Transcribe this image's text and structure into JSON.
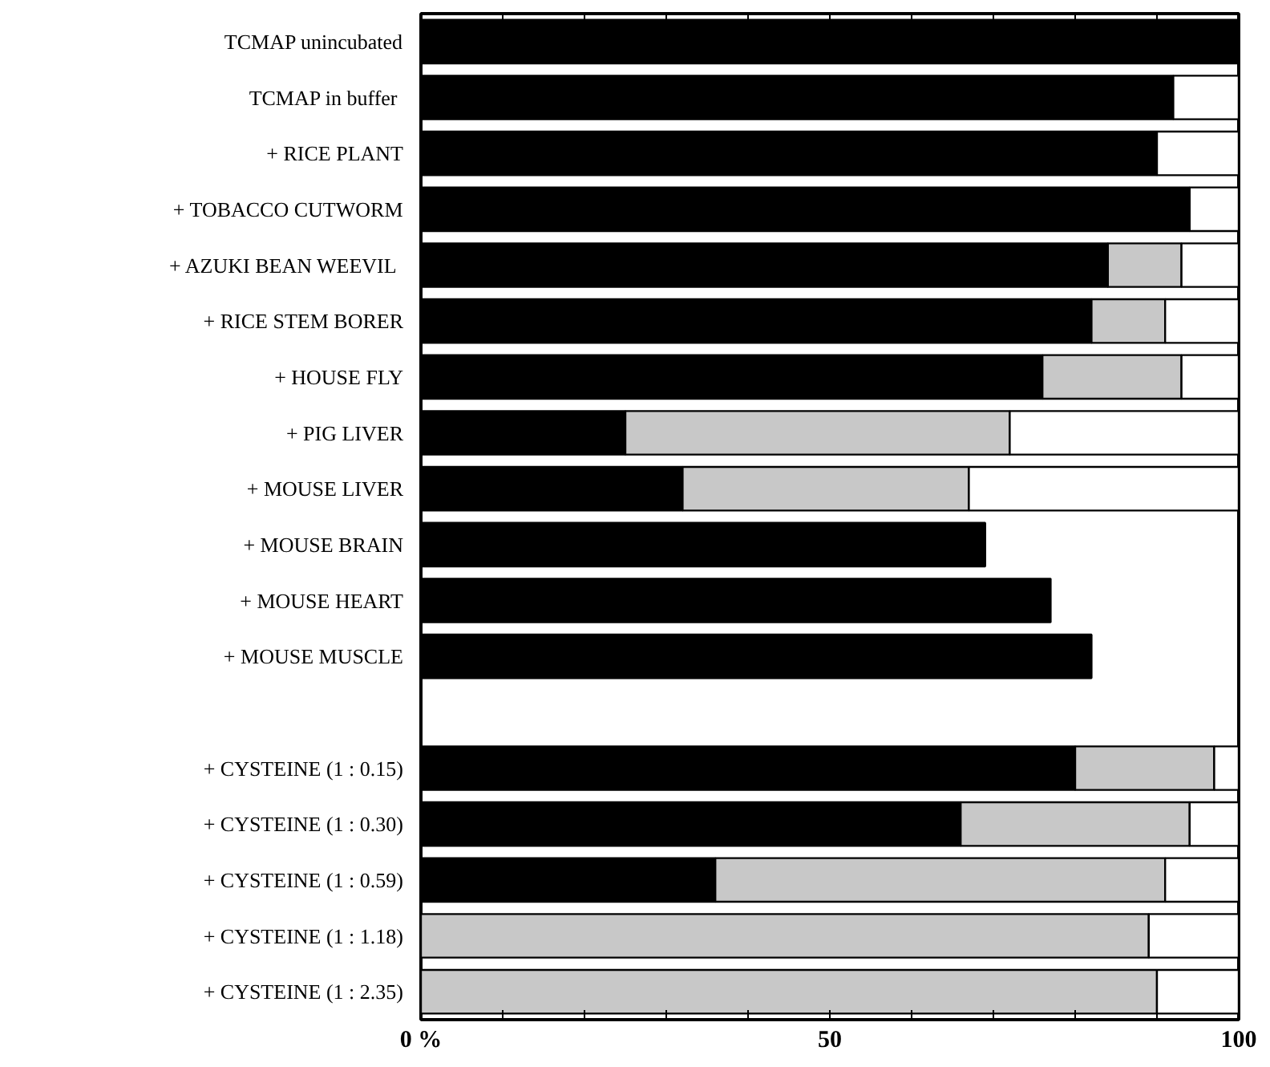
{
  "chart_data": {
    "type": "bar",
    "orientation": "horizontal",
    "stacked": true,
    "categories": [
      "TCMAP unincubated",
      "TCMAP  in buffer",
      "+ RICE PLANT",
      "+ TOBACCO CUTWORM",
      "+ AZUKI BEAN  WEEVIL",
      "+ RICE STEM BORER",
      "+ HOUSE FLY",
      "+ PIG LIVER",
      "+ MOUSE LIVER",
      "+ MOUSE BRAIN",
      "+ MOUSE HEART",
      "+ MOUSE MUSCLE",
      null,
      "+ CYSTEINE (1 : 0.15)",
      "+ CYSTEINE (1 : 0.30)",
      "+ CYSTEINE (1 : 0.59)",
      "+ CYSTEINE (1 : 1.18)",
      "+ CYSTEINE (1 : 2.35)"
    ],
    "series": [
      {
        "color": "#000000",
        "values": [
          100,
          92,
          90,
          94,
          84,
          82,
          76,
          25,
          32,
          69,
          77,
          82,
          null,
          80,
          66,
          36,
          null,
          null
        ]
      },
      {
        "color": "#c8c8c8",
        "values": [
          null,
          null,
          null,
          null,
          9,
          9,
          17,
          47,
          35,
          null,
          null,
          null,
          null,
          17,
          28,
          55,
          89,
          90
        ]
      },
      {
        "color": "#ffffff",
        "values": [
          null,
          8,
          10,
          6,
          7,
          9,
          7,
          28,
          33,
          null,
          null,
          null,
          null,
          3,
          6,
          9,
          11,
          10
        ]
      }
    ],
    "xlim": [
      0,
      100
    ],
    "xticks": [
      {
        "value": 0,
        "label": "0 %"
      },
      {
        "value": 10,
        "label": null
      },
      {
        "value": 20,
        "label": null
      },
      {
        "value": 30,
        "label": null
      },
      {
        "value": 40,
        "label": null
      },
      50,
      {
        "value": 60,
        "label": null
      },
      {
        "value": 70,
        "label": null
      },
      {
        "value": 80,
        "label": null
      },
      {
        "value": 90,
        "label": null
      },
      100
    ]
  }
}
